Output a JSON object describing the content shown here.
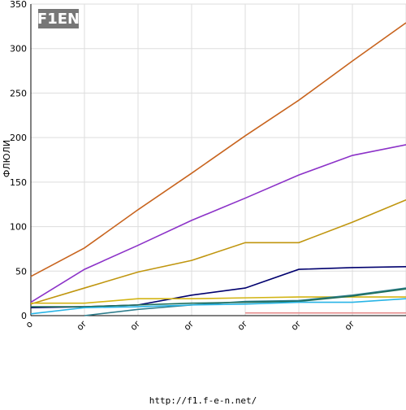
{
  "chart_data": {
    "type": "line",
    "logo": "F1EN",
    "ylabel": "ФЛЮЛИ",
    "footer": "http://f1.f-e-n.net/",
    "categories": [
      "o",
      "or",
      "or",
      "or",
      "or",
      "or",
      "or",
      null
    ],
    "ylim": [
      0,
      350
    ],
    "yticks": [
      0,
      50,
      100,
      150,
      200,
      250,
      300,
      350
    ],
    "grid": true,
    "series": [
      {
        "color": "#c8641e",
        "values": [
          44,
          76,
          119,
          160,
          202,
          242,
          286,
          329
        ]
      },
      {
        "color": "#8c32c8",
        "values": [
          15,
          52,
          79,
          107,
          132,
          158,
          180,
          192
        ]
      },
      {
        "color": "#c0960f",
        "values": [
          13,
          31,
          49,
          62,
          82,
          82,
          105,
          130
        ]
      },
      {
        "color": "#00006e",
        "values": [
          9,
          10,
          12,
          23,
          31,
          52,
          54,
          55
        ]
      },
      {
        "color": "#d2b414",
        "values": [
          14,
          14,
          19,
          19,
          20,
          21,
          21,
          21
        ]
      },
      {
        "color": "#2e7d8c",
        "values": [
          null,
          0,
          7,
          12,
          16,
          17,
          23,
          31
        ]
      },
      {
        "color": "#1e6e5a",
        "values": [
          10,
          10,
          12,
          14,
          15,
          16,
          22,
          30
        ]
      },
      {
        "color": "#28b4e6",
        "values": [
          2,
          9,
          10,
          12,
          13,
          15,
          15,
          19
        ]
      },
      {
        "color": "#e68c8c",
        "values": [
          null,
          null,
          null,
          null,
          3,
          3,
          3,
          3
        ]
      }
    ]
  }
}
